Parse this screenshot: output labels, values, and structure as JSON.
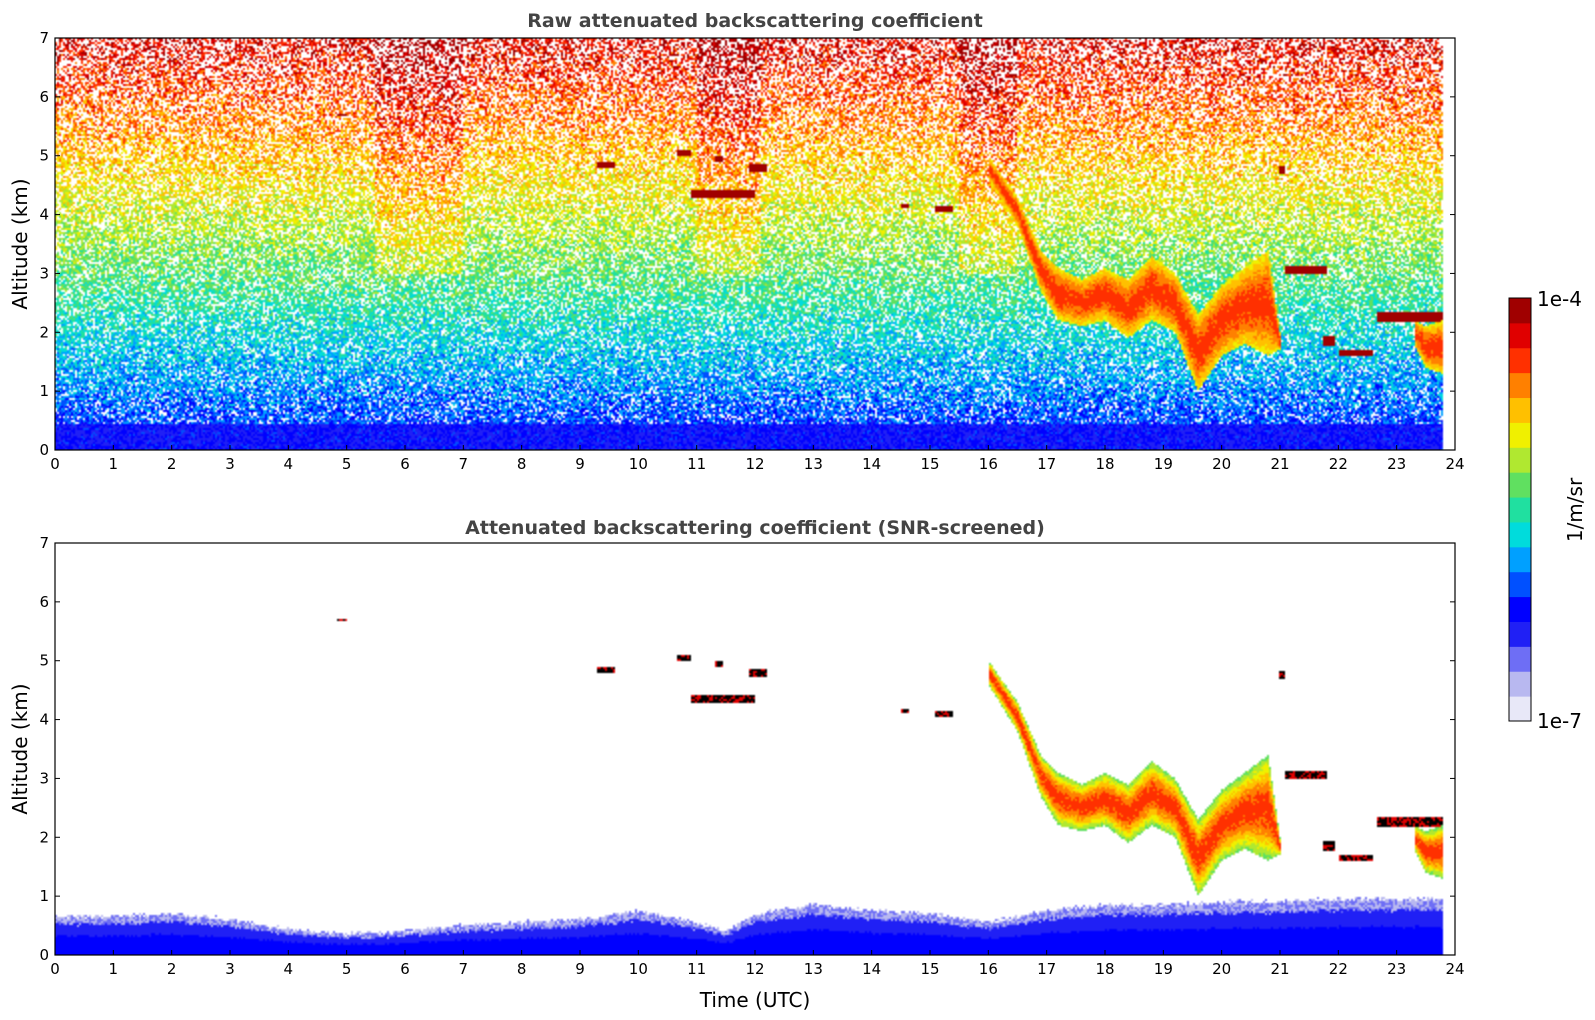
{
  "colormap": [
    "#e8e8f8",
    "#b8b8f0",
    "#6e6ef5",
    "#2020f5",
    "#0000ff",
    "#0050ff",
    "#00a0ff",
    "#00dcdc",
    "#20e0a0",
    "#60e060",
    "#b0e830",
    "#f0f000",
    "#ffc000",
    "#ff8000",
    "#ff3000",
    "#e00000",
    "#a00000"
  ],
  "chart_data": [
    {
      "type": "heatmap",
      "title": "Raw attenuated backscattering coefficient",
      "xlabel": "",
      "ylabel": "Altitude (km)",
      "xlim": [
        0,
        24
      ],
      "ylim": [
        0,
        7
      ],
      "xticks": [
        "0",
        "1",
        "2",
        "3",
        "4",
        "5",
        "6",
        "7",
        "8",
        "9",
        "10",
        "11",
        "12",
        "13",
        "14",
        "15",
        "16",
        "17",
        "18",
        "19",
        "20",
        "21",
        "22",
        "23",
        "24"
      ],
      "yticks": [
        "0",
        "1",
        "2",
        "3",
        "4",
        "5",
        "6",
        "7"
      ],
      "data_end_time": 23.8,
      "features": [
        {
          "kind": "surface-layer",
          "t0": 0,
          "t1": 23.8,
          "z0": 0,
          "z1": 0.45
        },
        {
          "kind": "cloud",
          "t0": 4.85,
          "t1": 5.0,
          "z": 5.7,
          "thickness": 0.05
        },
        {
          "kind": "cloud",
          "t0": 9.3,
          "t1": 9.6,
          "z": 4.85,
          "thickness": 0.12
        },
        {
          "kind": "cloud",
          "t0": 10.65,
          "t1": 10.9,
          "z": 5.05,
          "thickness": 0.12
        },
        {
          "kind": "cloud",
          "t0": 11.3,
          "t1": 11.45,
          "z": 4.95,
          "thickness": 0.12
        },
        {
          "kind": "cloud",
          "t0": 11.9,
          "t1": 12.2,
          "z": 4.8,
          "thickness": 0.12
        },
        {
          "kind": "cloud",
          "t0": 10.9,
          "t1": 12.0,
          "z": 4.35,
          "thickness": 0.14
        },
        {
          "kind": "cloud",
          "t0": 14.5,
          "t1": 14.65,
          "z": 4.15,
          "thickness": 0.05
        },
        {
          "kind": "cloud",
          "t0": 15.1,
          "t1": 15.4,
          "z": 4.1,
          "thickness": 0.1
        },
        {
          "kind": "cloud",
          "t0": 21.0,
          "t1": 21.1,
          "z": 4.75,
          "thickness": 0.12
        },
        {
          "kind": "cloud",
          "t0": 21.1,
          "t1": 21.8,
          "z": 3.05,
          "thickness": 0.15
        },
        {
          "kind": "cloud",
          "t0": 21.75,
          "t1": 21.95,
          "z": 1.85,
          "thickness": 0.15
        },
        {
          "kind": "cloud",
          "t0": 22.0,
          "t1": 22.6,
          "z": 1.65,
          "thickness": 0.12
        },
        {
          "kind": "cloud",
          "t0": 22.65,
          "t1": 23.8,
          "z": 2.25,
          "thickness": 0.18
        },
        {
          "kind": "cloud",
          "t0": 16.9,
          "t1": 17.25,
          "z": 3.05,
          "thickness": 0.08
        },
        {
          "kind": "layer",
          "t": [
            16.0,
            16.5,
            16.9,
            17.2,
            17.6,
            18.0,
            18.4,
            18.8,
            19.2,
            19.6,
            20.0,
            20.4,
            20.8,
            21.0
          ],
          "z_top": [
            5.0,
            4.3,
            3.4,
            3.1,
            2.9,
            3.1,
            2.9,
            3.3,
            3.0,
            2.3,
            2.8,
            3.1,
            3.4,
            2.0
          ],
          "z_bottom": [
            4.6,
            3.8,
            2.7,
            2.2,
            2.1,
            2.2,
            1.9,
            2.2,
            2.0,
            1.0,
            1.6,
            1.8,
            1.6,
            1.7
          ]
        },
        {
          "kind": "layer",
          "t": [
            23.3,
            23.5,
            23.8
          ],
          "z_top": [
            2.2,
            2.1,
            2.2
          ],
          "z_bottom": [
            1.8,
            1.4,
            1.3
          ]
        }
      ]
    },
    {
      "type": "heatmap",
      "title": "Attenuated backscattering coefficient (SNR-screened)",
      "xlabel": "Time (UTC)",
      "ylabel": "Altitude (km)",
      "xlim": [
        0,
        24
      ],
      "ylim": [
        0,
        7
      ],
      "xticks": [
        "0",
        "1",
        "2",
        "3",
        "4",
        "5",
        "6",
        "7",
        "8",
        "9",
        "10",
        "11",
        "12",
        "13",
        "14",
        "15",
        "16",
        "17",
        "18",
        "19",
        "20",
        "21",
        "22",
        "23",
        "24"
      ],
      "yticks": [
        "0",
        "1",
        "2",
        "3",
        "4",
        "5",
        "6",
        "7"
      ],
      "data_end_time": 23.8,
      "boundary_layer": {
        "t": [
          0,
          1,
          2,
          3,
          4,
          5,
          6,
          7,
          8,
          9,
          10,
          11,
          11.5,
          12,
          13,
          14,
          15,
          16,
          17,
          18,
          19,
          20,
          21,
          22,
          23,
          23.8
        ],
        "z_top": [
          0.65,
          0.65,
          0.7,
          0.6,
          0.45,
          0.35,
          0.4,
          0.5,
          0.55,
          0.6,
          0.75,
          0.55,
          0.4,
          0.7,
          0.85,
          0.75,
          0.7,
          0.55,
          0.75,
          0.85,
          0.85,
          0.9,
          0.9,
          0.95,
          0.95,
          0.95
        ]
      }
    }
  ],
  "colorbar": {
    "label": "1/m/sr",
    "max_label": "1e-4",
    "min_label": "1e-7",
    "vmin": 1e-07,
    "vmax": 0.0001,
    "scale": "log"
  }
}
